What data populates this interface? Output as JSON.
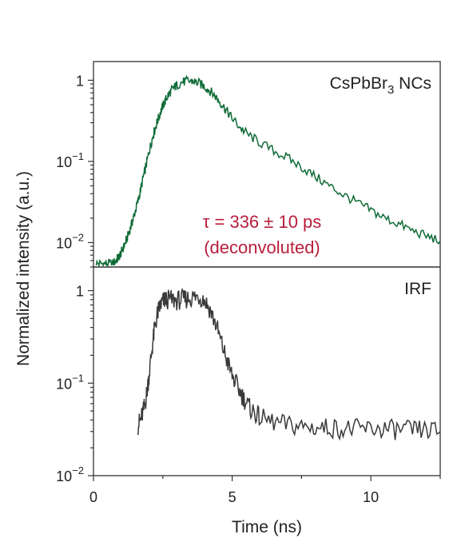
{
  "chart_data": {
    "type": "line",
    "scale_y": "log",
    "xlabel": "Time (ns)",
    "ylabel": "Normalized intensity (a.u.)",
    "xlim": [
      0,
      12.5
    ],
    "x_ticks": [
      "0",
      "5",
      "10"
    ],
    "x_tick_values": [
      0,
      5,
      10
    ],
    "panels": [
      {
        "label_main": "CsPbBr",
        "label_sub": "3",
        "label_tail": " NCs",
        "ylim": [
          0.005,
          1.7
        ],
        "y_ticks": [
          {
            "value": 1,
            "base": "1",
            "exp": ""
          },
          {
            "value": 0.1,
            "base": "10",
            "exp": "−1"
          },
          {
            "value": 0.01,
            "base": "10",
            "exp": "−2"
          }
        ],
        "series_color": "#0f6b37",
        "annotation": {
          "line1": "τ = 336 ± 10 ps",
          "line2": "(deconvoluted)",
          "color": "#b81e3c"
        },
        "series": {
          "x": [
            0.1,
            0.3,
            0.5,
            0.7,
            0.8,
            0.9,
            1.0,
            1.1,
            1.2,
            1.3,
            1.4,
            1.5,
            1.6,
            1.7,
            1.8,
            1.9,
            2.0,
            2.1,
            2.2,
            2.3,
            2.4,
            2.5,
            2.6,
            2.7,
            2.8,
            2.9,
            3.0,
            3.2,
            3.4,
            3.6,
            3.8,
            4.0,
            4.2,
            4.4,
            4.6,
            4.8,
            5.0,
            5.3,
            5.6,
            6.0,
            6.5,
            7.0,
            7.5,
            8.0,
            8.5,
            9.0,
            9.5,
            10.0,
            10.5,
            11.0,
            11.5,
            12.0,
            12.5
          ],
          "y": [
            0.0055,
            0.0055,
            0.0055,
            0.0055,
            0.006,
            0.0065,
            0.0075,
            0.009,
            0.011,
            0.014,
            0.018,
            0.024,
            0.032,
            0.045,
            0.065,
            0.09,
            0.13,
            0.18,
            0.24,
            0.31,
            0.39,
            0.48,
            0.57,
            0.66,
            0.74,
            0.81,
            0.87,
            0.95,
            0.98,
            0.97,
            0.92,
            0.84,
            0.74,
            0.63,
            0.52,
            0.42,
            0.34,
            0.26,
            0.21,
            0.17,
            0.135,
            0.11,
            0.085,
            0.065,
            0.05,
            0.039,
            0.031,
            0.025,
            0.02,
            0.017,
            0.014,
            0.012,
            0.0105
          ]
        }
      },
      {
        "label_main": "IRF",
        "label_sub": "",
        "label_tail": "",
        "ylim": [
          0.01,
          1.8
        ],
        "y_ticks": [
          {
            "value": 1,
            "base": "1",
            "exp": ""
          },
          {
            "value": 0.1,
            "base": "10",
            "exp": "−1"
          },
          {
            "value": 0.01,
            "base": "10",
            "exp": "−2"
          }
        ],
        "series_color": "#3a3a3a",
        "series": {
          "x": [
            1.6,
            1.7,
            1.8,
            1.9,
            2.0,
            2.1,
            2.2,
            2.3,
            2.4,
            2.5,
            2.6,
            2.8,
            3.0,
            3.2,
            3.4,
            3.6,
            3.8,
            4.0,
            4.2,
            4.4,
            4.6,
            4.8,
            5.0,
            5.2,
            5.4,
            5.6,
            5.8,
            6.0,
            6.5,
            7.0,
            7.5,
            8.0,
            8.5,
            9.0,
            9.5,
            10.0,
            10.5,
            11.0,
            11.5,
            12.0,
            12.5
          ],
          "y": [
            0.035,
            0.04,
            0.05,
            0.07,
            0.12,
            0.22,
            0.38,
            0.55,
            0.68,
            0.76,
            0.8,
            0.8,
            0.78,
            0.8,
            0.82,
            0.85,
            0.86,
            0.8,
            0.62,
            0.44,
            0.28,
            0.18,
            0.12,
            0.09,
            0.07,
            0.055,
            0.048,
            0.042,
            0.038,
            0.035,
            0.034,
            0.033,
            0.033,
            0.032,
            0.032,
            0.032,
            0.032,
            0.031,
            0.031,
            0.031,
            0.03
          ]
        }
      }
    ]
  }
}
